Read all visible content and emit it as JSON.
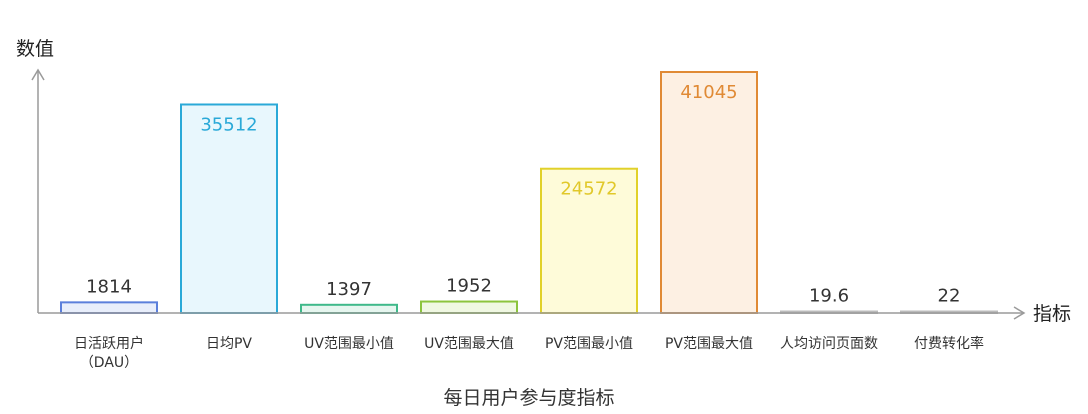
{
  "chart_data": {
    "type": "bar",
    "title": "每日用户参与度指标",
    "xlabel": "指标",
    "ylabel": "数值",
    "categories": [
      [
        "日活跃用户",
        "（DAU）"
      ],
      [
        "日均PV"
      ],
      [
        "UV范围最小值"
      ],
      [
        "UV范围最大值"
      ],
      [
        "PV范围最小值"
      ],
      [
        "PV范围最大值"
      ],
      [
        "人均访问页面数"
      ],
      [
        "付费转化率"
      ]
    ],
    "values": [
      1814,
      35512,
      1397,
      1952,
      24572,
      41045,
      19.6,
      22
    ],
    "value_labels": [
      "1814",
      "35512",
      "1397",
      "1952",
      "24572",
      "41045",
      "19.6",
      "22"
    ],
    "ylim": [
      0,
      43000
    ],
    "grid": false,
    "colors": {
      "stroke": [
        "#5b7fdb",
        "#2aa9d8",
        "#3fb98a",
        "#8cc43d",
        "#e1d12a",
        "#e08a35",
        "#bbbbbb",
        "#bbbbbb"
      ],
      "fill": [
        "#e8eefb",
        "#e8f7fd",
        "#e6f6ef",
        "#f0f8e2",
        "#fefbd9",
        "#fdf0e3",
        "#f2f2f2",
        "#f2f2f2"
      ],
      "label": [
        "#333333",
        "#2aa9d8",
        "#333333",
        "#333333",
        "#e1c82a",
        "#e08a35",
        "#333333",
        "#333333"
      ]
    }
  }
}
